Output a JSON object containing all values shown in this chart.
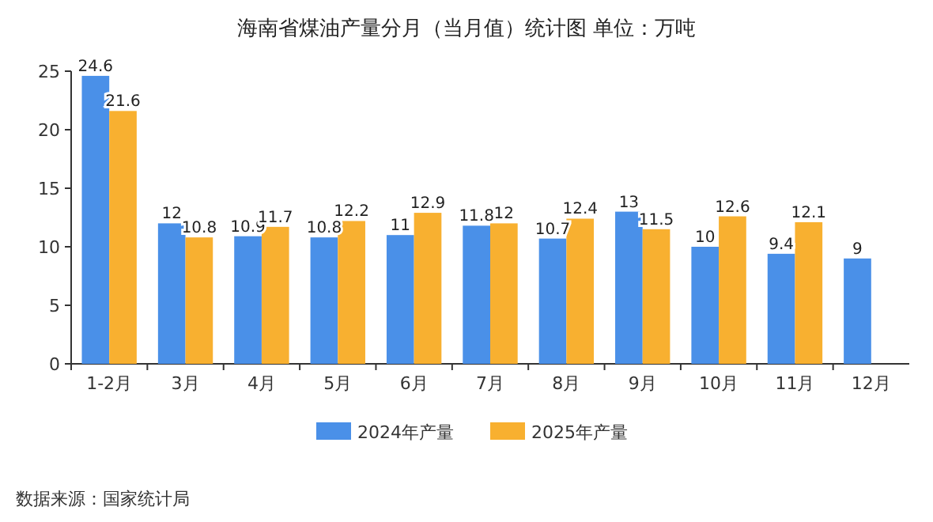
{
  "chart_data": {
    "type": "bar",
    "title": "海南省煤油产量分月（当月值）统计图 单位：万吨",
    "categories": [
      "1-2月",
      "3月",
      "4月",
      "5月",
      "6月",
      "7月",
      "8月",
      "9月",
      "10月",
      "11月",
      "12月"
    ],
    "series": [
      {
        "name": "2024年产量",
        "color": "#4a90e8",
        "values": [
          24.6,
          12,
          10.9,
          10.8,
          11,
          11.8,
          10.7,
          13,
          10,
          9.4,
          9
        ]
      },
      {
        "name": "2025年产量",
        "color": "#f8b030",
        "values": [
          21.6,
          10.8,
          11.7,
          12.2,
          12.9,
          12,
          12.4,
          11.5,
          12.6,
          12.1,
          null
        ]
      }
    ],
    "ylim": [
      0,
      25
    ],
    "yticks": [
      0,
      5,
      10,
      15,
      20,
      25
    ],
    "data_labels": true,
    "legend": "bottom",
    "annotations": [
      "数据来源：国家统计局"
    ]
  }
}
